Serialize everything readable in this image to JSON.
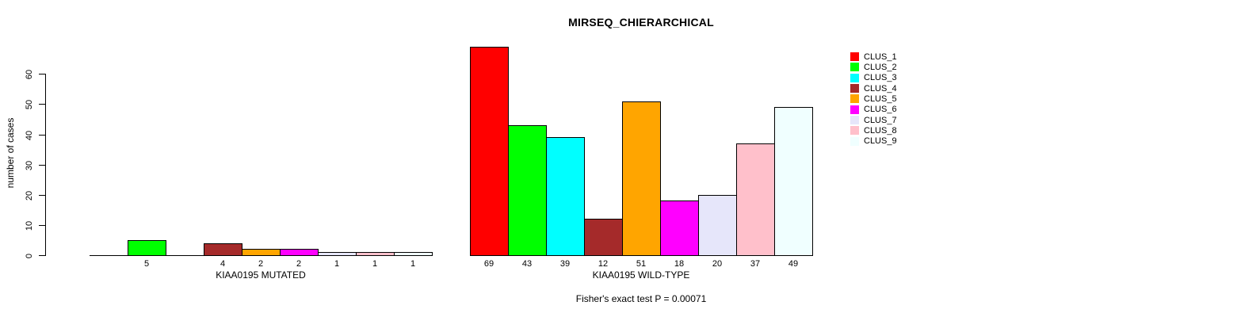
{
  "chart_data": {
    "type": "bar",
    "title": "MIRSEQ_CHIERARCHICAL",
    "ylabel": "number of cases",
    "yticks": [
      0,
      10,
      20,
      30,
      40,
      50,
      60
    ],
    "ylim": [
      0,
      69
    ],
    "grid": false,
    "legend_position": "right-inside-top",
    "series": [
      {
        "name": "CLUS_1",
        "color": "#FF0000"
      },
      {
        "name": "CLUS_2",
        "color": "#00FF00"
      },
      {
        "name": "CLUS_3",
        "color": "#00FFFF"
      },
      {
        "name": "CLUS_4",
        "color": "#A52A2A"
      },
      {
        "name": "CLUS_5",
        "color": "#FFA500"
      },
      {
        "name": "CLUS_6",
        "color": "#FF00FF"
      },
      {
        "name": "CLUS_7",
        "color": "#E6E6FA"
      },
      {
        "name": "CLUS_8",
        "color": "#FFC0CB"
      },
      {
        "name": "CLUS_9",
        "color": "#F0FFFF"
      }
    ],
    "groups": [
      {
        "label": "KIAA0195 MUTATED",
        "values": [
          0,
          5,
          0,
          4,
          2,
          2,
          1,
          1,
          1
        ]
      },
      {
        "label": "KIAA0195 WILD-TYPE",
        "values": [
          69,
          43,
          39,
          12,
          51,
          18,
          20,
          37,
          49
        ]
      }
    ],
    "bar_border_color": "#000000",
    "footnote": "Fisher's exact test P = 0.00071"
  }
}
